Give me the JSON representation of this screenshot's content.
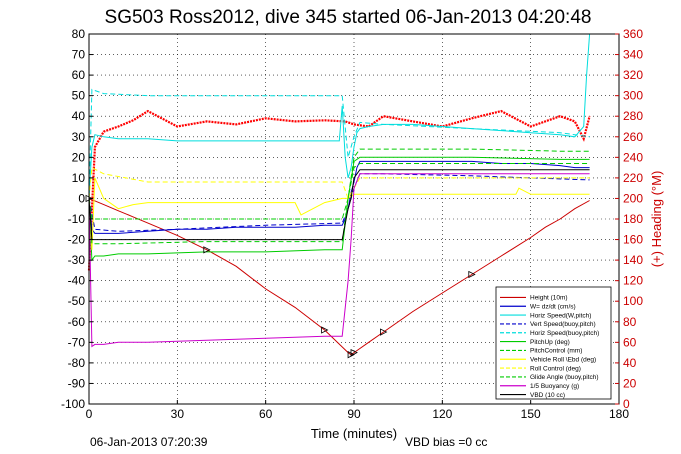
{
  "title": "SG503 Ross2012, dive 345 started 06-Jan-2013 04:20:48",
  "footer": {
    "end_time": "06-Jan-2013 07:20:39",
    "vbd_bias": "VBD bias =0 cc"
  },
  "chart_data": {
    "type": "line",
    "xlabel": "Time (minutes)",
    "ylabel": "",
    "y2label": "(+) Heading (°M)",
    "xlim": [
      0,
      180
    ],
    "ylim": [
      -100,
      80
    ],
    "y2lim": [
      0,
      360
    ],
    "xticks": [
      0,
      30,
      60,
      90,
      120,
      150,
      180
    ],
    "yticks": [
      -100,
      -90,
      -80,
      -70,
      -60,
      -50,
      -40,
      -30,
      -20,
      -10,
      0,
      10,
      20,
      30,
      40,
      50,
      60,
      70,
      80
    ],
    "y2ticks": [
      0,
      20,
      40,
      60,
      80,
      100,
      120,
      140,
      160,
      180,
      200,
      220,
      240,
      260,
      280,
      300,
      320,
      340,
      360
    ],
    "grid": true,
    "legend_position": "bottom-right",
    "series": [
      {
        "name": "Heading (°M)",
        "color": "#ff0000",
        "axis": "right",
        "style": "dots",
        "x": [
          0,
          2,
          5,
          10,
          15,
          20,
          30,
          40,
          50,
          60,
          70,
          80,
          87,
          90,
          95,
          100,
          110,
          120,
          130,
          140,
          150,
          160,
          165,
          168,
          170
        ],
        "y": [
          130,
          250,
          265,
          270,
          276,
          285,
          270,
          275,
          272,
          278,
          275,
          276,
          275,
          272,
          270,
          280,
          275,
          270,
          278,
          285,
          270,
          280,
          275,
          258,
          280
        ]
      },
      {
        "name": "Height (10m)",
        "color": "#cc0000",
        "style": "solid",
        "x": [
          0,
          5,
          10,
          15,
          20,
          30,
          40,
          50,
          60,
          70,
          80,
          88,
          89,
          90,
          92,
          95,
          100,
          110,
          120,
          130,
          140,
          150,
          155,
          160,
          165,
          170
        ],
        "y": [
          0,
          -3,
          -6,
          -9,
          -12,
          -18,
          -25,
          -33,
          -44,
          -53,
          -64,
          -75,
          -76,
          -75,
          -73,
          -70,
          -65,
          -55,
          -46,
          -37,
          -28,
          -19,
          -14,
          -10,
          -5,
          -1
        ]
      },
      {
        "name": "W= dz/dt (cm/s)",
        "color": "#0000cc",
        "style": "solid",
        "x": [
          0,
          1,
          2,
          5,
          10,
          20,
          30,
          40,
          50,
          60,
          70,
          80,
          86,
          87,
          88,
          89,
          90,
          91,
          92,
          95,
          100,
          110,
          120,
          130,
          140,
          150,
          160,
          165,
          170
        ],
        "y": [
          0,
          -15,
          -17,
          -17,
          -17,
          -16,
          -15,
          -15,
          -14,
          -14,
          -14,
          -13,
          -13,
          -10,
          -5,
          3,
          8,
          15,
          18,
          18,
          18,
          18,
          18,
          18,
          17,
          17,
          16,
          15,
          15
        ]
      },
      {
        "name": "Horiz Speed(W,pitch)",
        "color": "#00dddd",
        "style": "solid",
        "x": [
          0,
          1,
          2,
          5,
          10,
          20,
          30,
          40,
          50,
          60,
          70,
          80,
          85,
          86,
          87,
          88,
          89,
          90,
          91,
          92,
          95,
          100,
          110,
          120,
          130,
          140,
          150,
          160,
          165,
          168,
          169,
          170
        ],
        "y": [
          0,
          25,
          31,
          30,
          29,
          29,
          28,
          28,
          28,
          28,
          28,
          28,
          28,
          45,
          20,
          10,
          15,
          25,
          32,
          34,
          35,
          36,
          36,
          35,
          34,
          33,
          32,
          31,
          30,
          35,
          60,
          80
        ]
      },
      {
        "name": "Vert Speed(buoy,pitch)",
        "color": "#0000cc",
        "style": "dashed",
        "x": [
          0,
          2,
          10,
          30,
          60,
          86,
          88,
          90,
          92,
          100,
          130,
          150,
          170
        ],
        "y": [
          0,
          -15,
          -16,
          -15,
          -13,
          -12,
          -5,
          5,
          12,
          12,
          11,
          10,
          9
        ]
      },
      {
        "name": "Horiz Speed(buoy,pitch)",
        "color": "#00dddd",
        "style": "dashed",
        "x": [
          0,
          1,
          5,
          20,
          40,
          60,
          80,
          86,
          88,
          90,
          92,
          100,
          130,
          160,
          170
        ],
        "y": [
          0,
          53,
          51,
          50,
          50,
          50,
          50,
          50,
          20,
          30,
          37,
          36,
          34,
          32,
          30
        ]
      },
      {
        "name": "PitchUp (deg)",
        "color": "#00cc00",
        "style": "solid",
        "x": [
          0,
          1,
          2,
          5,
          10,
          20,
          40,
          60,
          80,
          86,
          88,
          90,
          92,
          100,
          130,
          160,
          170
        ],
        "y": [
          0,
          -30,
          -28,
          -28,
          -27,
          -27,
          -26,
          -26,
          -25,
          -25,
          0,
          18,
          20,
          20,
          20,
          19,
          19
        ]
      },
      {
        "name": "PitchControl (mm)",
        "color": "#00cc00",
        "style": "dashed",
        "x": [
          0,
          1,
          2,
          10,
          40,
          60,
          80,
          86,
          88,
          90,
          92,
          100,
          130,
          160,
          170
        ],
        "y": [
          0,
          -10,
          -10,
          -10,
          -10,
          -10,
          -10,
          -10,
          0,
          20,
          24,
          24,
          24,
          23,
          23
        ]
      },
      {
        "name": "Vehicle Roll \\Ebd (deg)",
        "color": "#ffff00",
        "style": "solid",
        "x": [
          0,
          1,
          2,
          5,
          10,
          15,
          20,
          40,
          60,
          70,
          72,
          80,
          86,
          88,
          90,
          92,
          100,
          130,
          145,
          146,
          150,
          160,
          170
        ],
        "y": [
          0,
          -25,
          10,
          0,
          -5,
          -3,
          -2,
          -2,
          -2,
          -2,
          -8,
          -2,
          0,
          0,
          2,
          2,
          2,
          2,
          2,
          5,
          2,
          2,
          2
        ]
      },
      {
        "name": "Roll Control (deg)",
        "color": "#ffff00",
        "style": "dashed",
        "x": [
          0,
          1,
          5,
          20,
          60,
          86,
          88,
          92,
          130,
          170
        ],
        "y": [
          0,
          15,
          12,
          8,
          8,
          8,
          0,
          10,
          10,
          10
        ]
      },
      {
        "name": "Glide Angle (buoy,pitch)",
        "color": "#00cc00",
        "style": "dashed",
        "x": [
          0,
          1,
          10,
          40,
          80,
          86,
          88,
          90,
          92,
          130,
          170
        ],
        "y": [
          0,
          -22,
          -22,
          -21,
          -21,
          -21,
          0,
          15,
          17,
          17,
          17
        ]
      },
      {
        "name": "1/5 Buoyancy (g)",
        "color": "#cc00cc",
        "style": "solid",
        "x": [
          0,
          1,
          2,
          5,
          10,
          20,
          40,
          60,
          80,
          86,
          88,
          89,
          90,
          92,
          100,
          130,
          160,
          170
        ],
        "y": [
          0,
          -72,
          -71,
          -71,
          -70,
          -70,
          -69,
          -68,
          -67,
          -67,
          -40,
          -20,
          5,
          12,
          12,
          12,
          12,
          12
        ]
      },
      {
        "name": "VBD (10 cc)",
        "color": "#000000",
        "style": "solid",
        "x": [
          0,
          1,
          2,
          5,
          10,
          20,
          40,
          60,
          80,
          86,
          88,
          89,
          90,
          92,
          100,
          130,
          160,
          170
        ],
        "y": [
          0,
          -20,
          -20,
          -20,
          -20,
          -20,
          -20,
          -20,
          -20,
          -20,
          -5,
          0,
          10,
          14,
          14,
          14,
          14,
          14
        ]
      }
    ]
  }
}
